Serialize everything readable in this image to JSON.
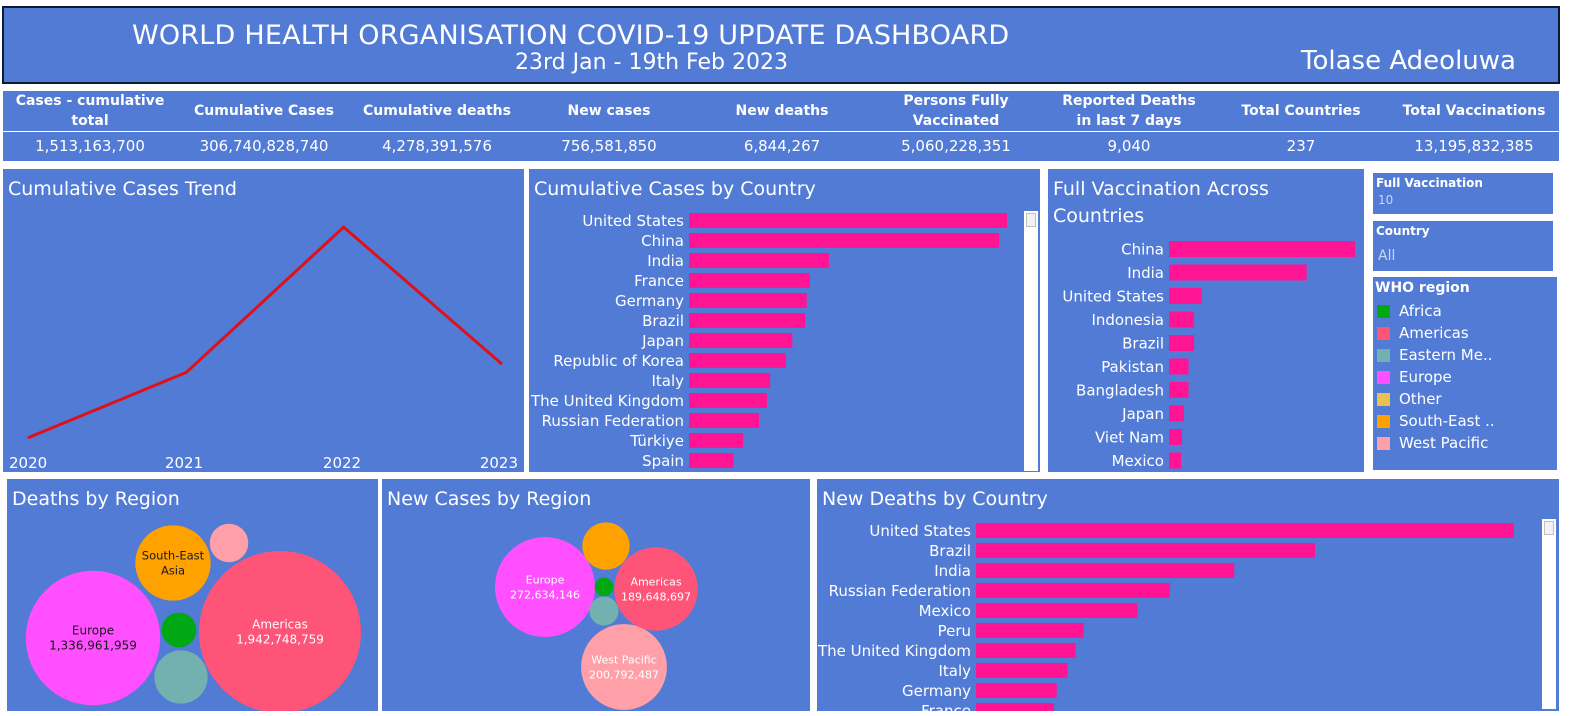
{
  "header": {
    "title": "WORLD HEALTH ORGANISATION COVID-19 UPDATE DASHBOARD",
    "subtitle": "23rd Jan - 19th Feb 2023",
    "author": "Tolase Adeoluwa"
  },
  "kpis": [
    {
      "label": "Cases - cumulative total",
      "value": "1,513,163,700"
    },
    {
      "label": "Cumulative Cases",
      "value": "306,740,828,740"
    },
    {
      "label": "Cumulative deaths",
      "value": "4,278,391,576"
    },
    {
      "label": "New cases",
      "value": "756,581,850"
    },
    {
      "label": "New deaths",
      "value": "6,844,267"
    },
    {
      "label": "Persons Fully Vaccinated",
      "value": "5,060,228,351"
    },
    {
      "label": "Reported Deaths in last 7 days",
      "value": "9,040"
    },
    {
      "label": "Total Countries",
      "value": "237"
    },
    {
      "label": "Total Vaccinations",
      "value": "13,195,832,385"
    }
  ],
  "filters": {
    "full_vaccination": {
      "label": "Full Vaccination",
      "value": "10"
    },
    "country": {
      "label": "Country",
      "value": "All"
    }
  },
  "legend": {
    "title": "WHO region",
    "items": [
      {
        "label": "Africa",
        "color": "#00a814"
      },
      {
        "label": "Americas",
        "color": "#fe5478"
      },
      {
        "label": "Eastern Me..",
        "color": "#72b1b0"
      },
      {
        "label": "Europe",
        "color": "#ff4fff"
      },
      {
        "label": "Other",
        "color": "#e8c24a"
      },
      {
        "label": "South-East ..",
        "color": "#ffa200"
      },
      {
        "label": "West Pacific",
        "color": "#ffa0a8"
      }
    ]
  },
  "colors": {
    "panel": "#527bd6",
    "bar": "#ff1493",
    "line": "#e0101a"
  },
  "chart_data": [
    {
      "id": "trend",
      "type": "line",
      "title": "Cumulative Cases Trend",
      "x": [
        "2020",
        "2021",
        "2022",
        "2023"
      ],
      "y": [
        0.45,
        2.6,
        7.4,
        2.9
      ],
      "ylim": [
        0,
        8
      ],
      "grid": false
    },
    {
      "id": "cases_by_country",
      "type": "bar",
      "orientation": "horizontal",
      "title": "Cumulative Cases by Country",
      "categories": [
        "United States",
        "China",
        "India",
        "France",
        "Germany",
        "Brazil",
        "Japan",
        "Republic of Korea",
        "Italy",
        "The United Kingdom",
        "Russian Federation",
        "Türkiye",
        "Spain"
      ],
      "values": [
        100,
        97.5,
        44,
        38,
        37,
        36.5,
        32.5,
        30.5,
        25.5,
        24.5,
        22,
        17,
        14
      ],
      "xlim": [
        0,
        100
      ]
    },
    {
      "id": "full_vaccination",
      "type": "bar",
      "orientation": "horizontal",
      "title": "Full Vaccination Across Countries",
      "categories": [
        "China",
        "India",
        "United States",
        "Indonesia",
        "Brazil",
        "Pakistan",
        "Bangladesh",
        "Japan",
        "Viet Nam",
        "Mexico"
      ],
      "values": [
        100,
        74,
        17.5,
        13.5,
        13.5,
        10.5,
        10.5,
        8,
        7,
        6.5
      ],
      "xlim": [
        0,
        100
      ]
    },
    {
      "id": "deaths_by_region",
      "type": "bubble",
      "title": "Deaths by Region",
      "bubbles": [
        {
          "region": "Americas",
          "label": "Americas",
          "value_label": "1,942,748,759",
          "value": 1942748759,
          "color": "#fe5478"
        },
        {
          "region": "Europe",
          "label": "Europe",
          "value_label": "1,336,961,959",
          "value": 1336961959,
          "color": "#ff4fff"
        },
        {
          "region": "South-East Asia",
          "label": "South-East\nAsia",
          "value_label": "",
          "value": 420000000,
          "color": "#ffa200"
        },
        {
          "region": "Eastern Mediterranean",
          "label": "",
          "value_label": "",
          "value": 210000000,
          "color": "#72b1b0"
        },
        {
          "region": "Africa",
          "label": "",
          "value_label": "",
          "value": 90000000,
          "color": "#00a814"
        },
        {
          "region": "West Pacific",
          "label": "",
          "value_label": "",
          "value": 110000000,
          "color": "#ffa0a8"
        }
      ]
    },
    {
      "id": "new_cases_by_region",
      "type": "bubble",
      "title": "New Cases by Region",
      "bubbles": [
        {
          "region": "Europe",
          "label": "Europe",
          "value_label": "272,634,146",
          "value": 272634146,
          "color": "#ff4fff"
        },
        {
          "region": "West Pacific",
          "label": "West Pacific",
          "value_label": "200,792,487",
          "value": 200792487,
          "color": "#ffa0a8"
        },
        {
          "region": "Americas",
          "label": "Americas",
          "value_label": "189,648,697",
          "value": 189648697,
          "color": "#fe5478"
        },
        {
          "region": "South-East Asia",
          "label": "",
          "value_label": "",
          "value": 61000000,
          "color": "#ffa200"
        },
        {
          "region": "Eastern Mediterranean",
          "label": "",
          "value_label": "",
          "value": 23000000,
          "color": "#72b1b0"
        },
        {
          "region": "Africa",
          "label": "",
          "value_label": "",
          "value": 9500000,
          "color": "#00a814"
        }
      ]
    },
    {
      "id": "new_deaths_by_country",
      "type": "bar",
      "orientation": "horizontal",
      "title": "New Deaths by Country",
      "categories": [
        "United States",
        "Brazil",
        "India",
        "Russian Federation",
        "Mexico",
        "Peru",
        "The United Kingdom",
        "Italy",
        "Germany",
        "France"
      ],
      "values": [
        100,
        63,
        48,
        36,
        30,
        20,
        18.5,
        17,
        15,
        14.5
      ],
      "xlim": [
        0,
        100
      ]
    }
  ]
}
